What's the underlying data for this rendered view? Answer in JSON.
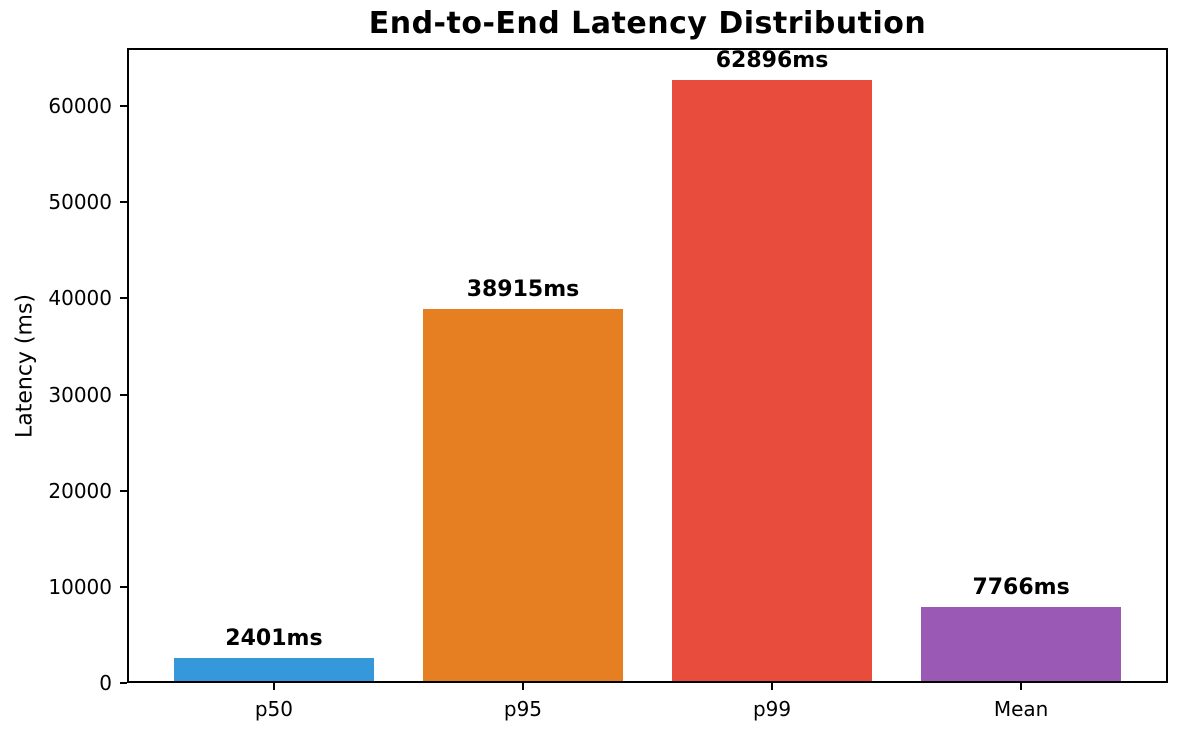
{
  "chart_data": {
    "type": "bar",
    "title": "End-to-End Latency Distribution",
    "xlabel": "",
    "ylabel": "Latency (ms)",
    "categories": [
      "p50",
      "p95",
      "p99",
      "Mean"
    ],
    "values": [
      2401,
      38915,
      62896,
      7766
    ],
    "bar_value_labels": [
      "2401ms",
      "38915ms",
      "62896ms",
      "7766ms"
    ],
    "bar_colors": [
      "#3498db",
      "#e67e22",
      "#e74c3c",
      "#9b59b6"
    ],
    "ylim": [
      0,
      66041
    ],
    "yticks": [
      0,
      10000,
      20000,
      30000,
      40000,
      50000,
      60000
    ],
    "ytick_labels": [
      "0",
      "10000",
      "20000",
      "30000",
      "40000",
      "50000",
      "60000"
    ],
    "grid": false,
    "legend": null,
    "background_color": "#ffffff",
    "spine_color": "#000000",
    "text_color": "#000000"
  }
}
